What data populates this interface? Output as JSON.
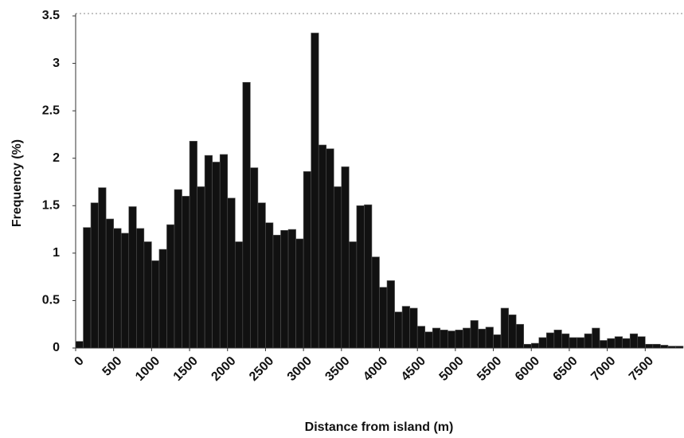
{
  "chart_data": {
    "type": "histogram",
    "x_label": "Distance from island (m)",
    "y_label": "Frequency (%)",
    "bins": [
      0,
      100,
      200,
      300,
      400,
      500,
      600,
      700,
      800,
      900,
      1000,
      1100,
      1200,
      1300,
      1400,
      1500,
      1600,
      1700,
      1800,
      1900,
      2000,
      2100,
      2200,
      2300,
      2400,
      2500,
      2600,
      2700,
      2800,
      2900,
      3000,
      3100,
      3200,
      3300,
      3400,
      3500,
      3600,
      3700,
      3800,
      3900,
      4000,
      4100,
      4200,
      4300,
      4400,
      4500,
      4600,
      4700,
      4800,
      4900,
      5000,
      5100,
      5200,
      5300,
      5400,
      5500,
      5600,
      5700,
      5800,
      5900,
      6000,
      6100,
      6200,
      6300,
      6400,
      6500,
      6600,
      6700,
      6800,
      6900,
      7000,
      7100,
      7200,
      7300,
      7400,
      7500,
      7600,
      7700,
      7800,
      7900,
      8000
    ],
    "values": [
      0.07,
      1.27,
      1.53,
      1.69,
      1.36,
      1.26,
      1.21,
      1.49,
      1.26,
      1.12,
      0.92,
      1.04,
      1.3,
      1.67,
      1.6,
      2.18,
      1.7,
      2.03,
      1.96,
      2.04,
      1.58,
      1.12,
      2.8,
      1.9,
      1.53,
      1.32,
      1.19,
      1.24,
      1.25,
      1.15,
      1.86,
      3.32,
      2.14,
      2.1,
      1.7,
      1.91,
      1.12,
      1.5,
      1.51,
      0.96,
      0.64,
      0.71,
      0.38,
      0.44,
      0.42,
      0.23,
      0.17,
      0.21,
      0.19,
      0.18,
      0.19,
      0.21,
      0.29,
      0.2,
      0.22,
      0.14,
      0.42,
      0.35,
      0.25,
      0.04,
      0.05,
      0.11,
      0.16,
      0.19,
      0.15,
      0.11,
      0.11,
      0.15,
      0.21,
      0.08,
      0.1,
      0.12,
      0.1,
      0.15,
      0.12,
      0.04,
      0.04,
      0.03,
      0.02,
      0.02
    ],
    "color": "#111111",
    "xlim": [
      0,
      8000
    ],
    "xticks": [
      0,
      500,
      1000,
      1500,
      2000,
      2500,
      3000,
      3500,
      4000,
      4500,
      5000,
      5500,
      6000,
      6500,
      7000,
      7500
    ],
    "ylim": [
      0,
      3.5
    ],
    "yticks": [
      0,
      0.5,
      1,
      1.5,
      2,
      2.5,
      3,
      3.5
    ]
  }
}
